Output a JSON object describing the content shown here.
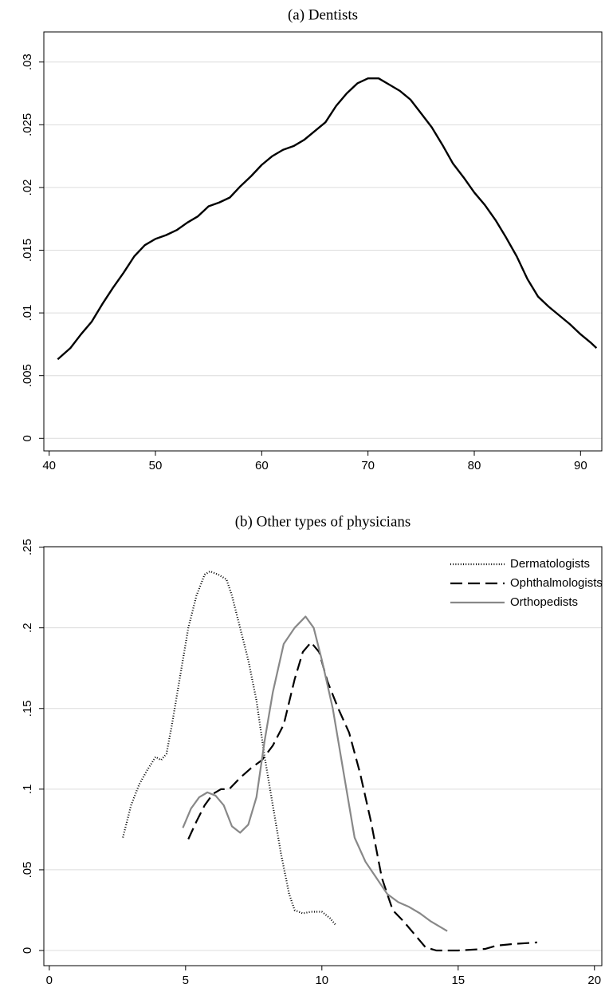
{
  "chart_data": [
    {
      "type": "line",
      "title": "(a) Dentists",
      "x": [
        40.8,
        42,
        43,
        44,
        45,
        46,
        47,
        48,
        49,
        50,
        51,
        52,
        53,
        54,
        55,
        56,
        57,
        58,
        59,
        60,
        61,
        62,
        63,
        64,
        65,
        66,
        67,
        68,
        69,
        70,
        71,
        72,
        73,
        74,
        75,
        76,
        77,
        78,
        79,
        80,
        81,
        82,
        83,
        84,
        85,
        86,
        87,
        88,
        89,
        90,
        91,
        91.5
      ],
      "values": [
        0.0063,
        0.0072,
        0.0083,
        0.0093,
        0.0107,
        0.012,
        0.0132,
        0.0145,
        0.0154,
        0.0159,
        0.0162,
        0.0166,
        0.0172,
        0.0177,
        0.0185,
        0.0188,
        0.0192,
        0.0201,
        0.0209,
        0.0218,
        0.0225,
        0.023,
        0.0233,
        0.0238,
        0.0245,
        0.0252,
        0.0265,
        0.0275,
        0.0283,
        0.0287,
        0.0287,
        0.0282,
        0.0277,
        0.027,
        0.0259,
        0.0248,
        0.0234,
        0.0219,
        0.0208,
        0.0196,
        0.0186,
        0.0174,
        0.016,
        0.0145,
        0.0127,
        0.0113,
        0.0105,
        0.0098,
        0.0091,
        0.0083,
        0.0076,
        0.0072
      ],
      "color": "#000000",
      "xlim": [
        39.5,
        92
      ],
      "xticks": [
        40,
        50,
        60,
        70,
        80,
        90
      ],
      "ylim": [
        -0.001,
        0.0324
      ],
      "yticks": [
        0,
        {
          "value": 0.005,
          "label": ".005"
        },
        {
          "value": 0.01,
          "label": ".01"
        },
        {
          "value": 0.015,
          "label": ".015"
        },
        {
          "value": 0.02,
          "label": ".02"
        },
        {
          "value": 0.025,
          "label": ".025"
        },
        {
          "value": 0.03,
          "label": ".03"
        }
      ],
      "grid": true
    },
    {
      "type": "line",
      "title": "(b) Other types of physicians",
      "series": [
        {
          "name": "Dermatologists",
          "color": "#000000",
          "dash": "dotted",
          "x": [
            2.7,
            3.0,
            3.3,
            3.6,
            3.9,
            4.1,
            4.3,
            4.5,
            4.8,
            5.1,
            5.4,
            5.7,
            5.9,
            6.2,
            6.5,
            6.7,
            7.0,
            7.3,
            7.6,
            7.9,
            8.2,
            8.5,
            8.8,
            9.0,
            9.3,
            9.6,
            10.0,
            10.3,
            10.5
          ],
          "values": [
            0.07,
            0.09,
            0.103,
            0.112,
            0.12,
            0.118,
            0.122,
            0.14,
            0.17,
            0.2,
            0.22,
            0.233,
            0.235,
            0.233,
            0.23,
            0.22,
            0.2,
            0.18,
            0.155,
            0.12,
            0.09,
            0.06,
            0.035,
            0.025,
            0.023,
            0.024,
            0.024,
            0.02,
            0.016
          ]
        },
        {
          "name": "Ophthalmologists",
          "color": "#000000",
          "dash": "dashed",
          "x": [
            5.1,
            5.4,
            5.7,
            6.0,
            6.3,
            6.6,
            7.0,
            7.4,
            7.8,
            8.2,
            8.6,
            9.0,
            9.3,
            9.6,
            9.9,
            10.2,
            10.6,
            11.0,
            11.4,
            11.8,
            12.2,
            12.6,
            13.0,
            13.4,
            13.8,
            14.2,
            15.0,
            16.0,
            16.4,
            17.0,
            17.9
          ],
          "values": [
            0.069,
            0.08,
            0.09,
            0.097,
            0.1,
            0.1,
            0.107,
            0.113,
            0.118,
            0.127,
            0.14,
            0.168,
            0.185,
            0.191,
            0.185,
            0.167,
            0.15,
            0.135,
            0.11,
            0.08,
            0.045,
            0.025,
            0.018,
            0.01,
            0.002,
            0,
            0,
            0.001,
            0.003,
            0.004,
            0.005
          ]
        },
        {
          "name": "Orthopedists",
          "color": "#888888",
          "dash": "solid",
          "x": [
            4.9,
            5.2,
            5.5,
            5.8,
            6.1,
            6.4,
            6.7,
            7.0,
            7.3,
            7.6,
            7.9,
            8.2,
            8.6,
            9.0,
            9.4,
            9.7,
            10.0,
            10.4,
            10.8,
            11.2,
            11.6,
            12.0,
            12.4,
            12.8,
            13.2,
            13.6,
            14.0,
            14.6
          ],
          "values": [
            0.076,
            0.088,
            0.095,
            0.098,
            0.096,
            0.09,
            0.077,
            0.073,
            0.078,
            0.095,
            0.13,
            0.16,
            0.19,
            0.2,
            0.207,
            0.2,
            0.18,
            0.15,
            0.11,
            0.07,
            0.055,
            0.045,
            0.035,
            0.03,
            0.027,
            0.023,
            0.018,
            0.012
          ]
        }
      ],
      "xlim": [
        -0.2,
        20.27
      ],
      "xticks": [
        0,
        5,
        10,
        15,
        20
      ],
      "ylim": [
        -0.0094,
        0.2503
      ],
      "yticks": [
        0,
        {
          "value": 0.05,
          "label": ".05"
        },
        {
          "value": 0.1,
          "label": ".1"
        },
        {
          "value": 0.15,
          "label": ".15"
        },
        {
          "value": 0.2,
          "label": ".2"
        },
        {
          "value": 0.25,
          "label": ".25"
        }
      ],
      "grid": true,
      "legend": "upper right"
    }
  ]
}
